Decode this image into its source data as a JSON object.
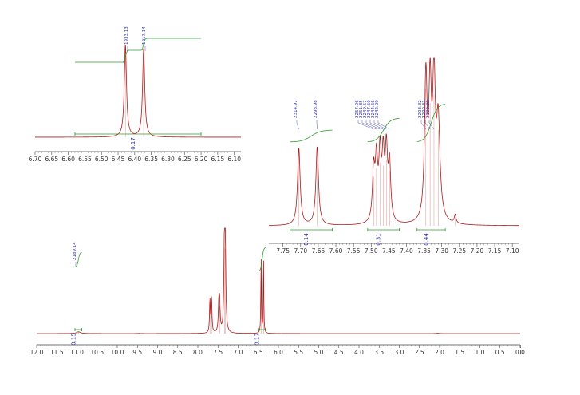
{
  "chart_data": [
    {
      "type": "line",
      "panel": "full",
      "xlim": [
        12.0,
        0.0
      ],
      "x_reversed": true,
      "ticks": [
        "12.0",
        "11.5",
        "11.0",
        "10.5",
        "10.0",
        "9.5",
        "9.0",
        "8.5",
        "8.0",
        "7.5",
        "7.0",
        "6.5",
        "6.0",
        "5.5",
        "5.0",
        "4.5",
        "4.0",
        "3.5",
        "3.0",
        "2.5",
        "2.0",
        "1.5",
        "1.0",
        "0.5",
        "0.0",
        "-0"
      ],
      "tick_values": [
        12.0,
        11.5,
        11.0,
        10.5,
        10.0,
        9.5,
        9.0,
        8.5,
        8.0,
        7.5,
        7.0,
        6.5,
        6.0,
        5.5,
        5.0,
        4.5,
        4.0,
        3.5,
        3.0,
        2.5,
        2.0,
        1.5,
        1.0,
        0.5,
        0.0,
        -0.01
      ],
      "peaks": [
        {
          "ppm": 10.96,
          "height": 0.02,
          "width": 0.06
        },
        {
          "ppm": 9.45,
          "height": 0.003,
          "width": 0.02
        },
        {
          "ppm": 7.7,
          "height": 0.38,
          "width": 0.012
        },
        {
          "ppm": 7.66,
          "height": 0.4,
          "width": 0.012
        },
        {
          "ppm": 7.48,
          "height": 0.3,
          "width": 0.015
        },
        {
          "ppm": 7.46,
          "height": 0.32,
          "width": 0.015
        },
        {
          "ppm": 7.34,
          "height": 1.0,
          "width": 0.015
        },
        {
          "ppm": 7.32,
          "height": 0.98,
          "width": 0.015
        },
        {
          "ppm": 6.43,
          "height": 0.86,
          "width": 0.008
        },
        {
          "ppm": 6.37,
          "height": 0.84,
          "width": 0.008
        },
        {
          "ppm": 2.05,
          "height": 0.004,
          "width": 0.03
        }
      ],
      "peak_labels": [
        "2189.14"
      ],
      "integrals": [
        {
          "from": 11.05,
          "to": 10.88,
          "value": "0.15"
        },
        {
          "from": 6.49,
          "to": 6.32,
          "value": "0.17"
        }
      ]
    },
    {
      "type": "line",
      "panel": "inset-6.4",
      "xlim": [
        6.7,
        6.08
      ],
      "x_reversed": true,
      "ticks": [
        "6.70",
        "6.65",
        "6.60",
        "6.55",
        "6.50",
        "6.45",
        "6.40",
        "6.35",
        "6.30",
        "6.25",
        "6.20",
        "6.15",
        "6.10"
      ],
      "tick_values": [
        6.7,
        6.65,
        6.6,
        6.55,
        6.5,
        6.45,
        6.4,
        6.35,
        6.3,
        6.25,
        6.2,
        6.15,
        6.1
      ],
      "peaks": [
        {
          "ppm": 6.428,
          "height": 1.0,
          "width": 0.004
        },
        {
          "ppm": 6.373,
          "height": 0.95,
          "width": 0.004
        }
      ],
      "peak_labels": [
        "1933.13",
        "1917.14"
      ],
      "integrals": [
        {
          "from": 6.58,
          "to": 6.2,
          "value": "0.17"
        }
      ]
    },
    {
      "type": "line",
      "panel": "inset-7.5",
      "xlim": [
        7.79,
        7.08
      ],
      "x_reversed": true,
      "ticks": [
        "7.75",
        "7.70",
        "7.65",
        "7.60",
        "7.55",
        "7.50",
        "7.45",
        "7.40",
        "7.35",
        "7.30",
        "7.25",
        "7.20",
        "7.15",
        "7.10"
      ],
      "tick_values": [
        7.75,
        7.7,
        7.65,
        7.6,
        7.55,
        7.5,
        7.45,
        7.4,
        7.35,
        7.3,
        7.25,
        7.2,
        7.15,
        7.1
      ],
      "peaks": [
        {
          "ppm": 7.705,
          "height": 0.55,
          "width": 0.0045
        },
        {
          "ppm": 7.653,
          "height": 0.56,
          "width": 0.0045
        },
        {
          "ppm": 7.493,
          "height": 0.36,
          "width": 0.004
        },
        {
          "ppm": 7.485,
          "height": 0.42,
          "width": 0.004
        },
        {
          "ppm": 7.475,
          "height": 0.46,
          "width": 0.004
        },
        {
          "ppm": 7.466,
          "height": 0.44,
          "width": 0.004
        },
        {
          "ppm": 7.457,
          "height": 0.48,
          "width": 0.004
        },
        {
          "ppm": 7.448,
          "height": 0.4,
          "width": 0.004
        },
        {
          "ppm": 7.345,
          "height": 1.0,
          "width": 0.0045
        },
        {
          "ppm": 7.333,
          "height": 0.9,
          "width": 0.0045
        },
        {
          "ppm": 7.322,
          "height": 0.96,
          "width": 0.0045
        },
        {
          "ppm": 7.31,
          "height": 0.7,
          "width": 0.006
        },
        {
          "ppm": 7.262,
          "height": 0.06,
          "width": 0.003
        }
      ],
      "peak_labels": [
        "2314.97",
        "2298.98",
        "2257.06",
        "2251.85",
        "2249.57",
        "2247.50",
        "2244.66",
        "2242.09",
        "2203.32",
        "2200.31",
        "2199.99"
      ],
      "integrals": [
        {
          "from": 7.73,
          "to": 7.61,
          "value": "0.14"
        },
        {
          "from": 7.51,
          "to": 7.42,
          "value": "0.31"
        },
        {
          "from": 7.37,
          "to": 7.29,
          "value": "0.44"
        }
      ]
    }
  ]
}
